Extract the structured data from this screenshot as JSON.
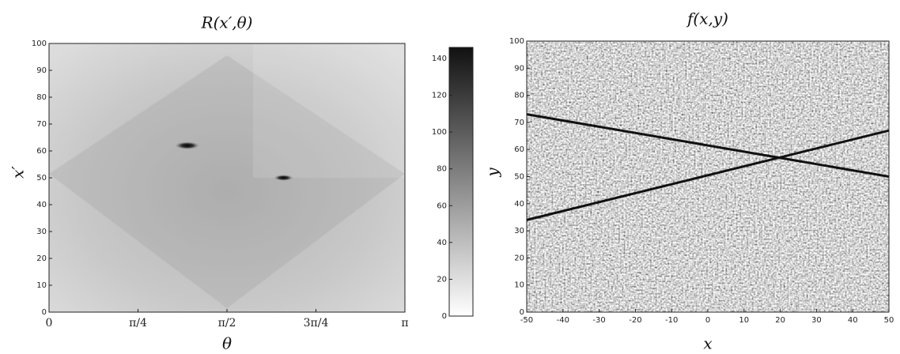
{
  "chart_data": [
    {
      "type": "heatmap",
      "title": "R(x′,θ)",
      "x_label": "θ",
      "y_label": "x′",
      "xlim": [
        0,
        3.14159
      ],
      "xticks": [
        0,
        {
          "value": 0.7854,
          "label": "π/4"
        },
        {
          "value": 1.5708,
          "label": "π/2"
        },
        {
          "value": 2.3562,
          "label": "3π/4"
        },
        {
          "value": 3.14159,
          "label": "π"
        }
      ],
      "ylim": [
        0,
        100
      ],
      "yticks": [
        0,
        10,
        20,
        30,
        40,
        50,
        60,
        70,
        80,
        90,
        100
      ],
      "peaks": [
        {
          "theta": 1.22,
          "x": 62,
          "value": 140
        },
        {
          "theta": 2.07,
          "x": 50,
          "value": 110
        }
      ],
      "colorbar": {
        "lim": [
          0,
          146
        ],
        "ticks": [
          0,
          20,
          40,
          60,
          80,
          100,
          120,
          140
        ]
      }
    },
    {
      "type": "lines",
      "title": "f(x,y)",
      "x_label": "x",
      "y_label": "y",
      "xlim": [
        -50,
        50
      ],
      "xticks": [
        -50,
        -40,
        -30,
        -20,
        -10,
        0,
        10,
        20,
        30,
        40,
        50
      ],
      "ylim": [
        0,
        100
      ],
      "yticks": [
        0,
        10,
        20,
        30,
        40,
        50,
        60,
        70,
        80,
        90,
        100
      ],
      "series": [
        {
          "x": [
            -50,
            50
          ],
          "y": [
            73,
            50
          ],
          "color": "#111111"
        },
        {
          "x": [
            -50,
            50
          ],
          "y": [
            34,
            67
          ],
          "color": "#111111"
        }
      ]
    }
  ]
}
